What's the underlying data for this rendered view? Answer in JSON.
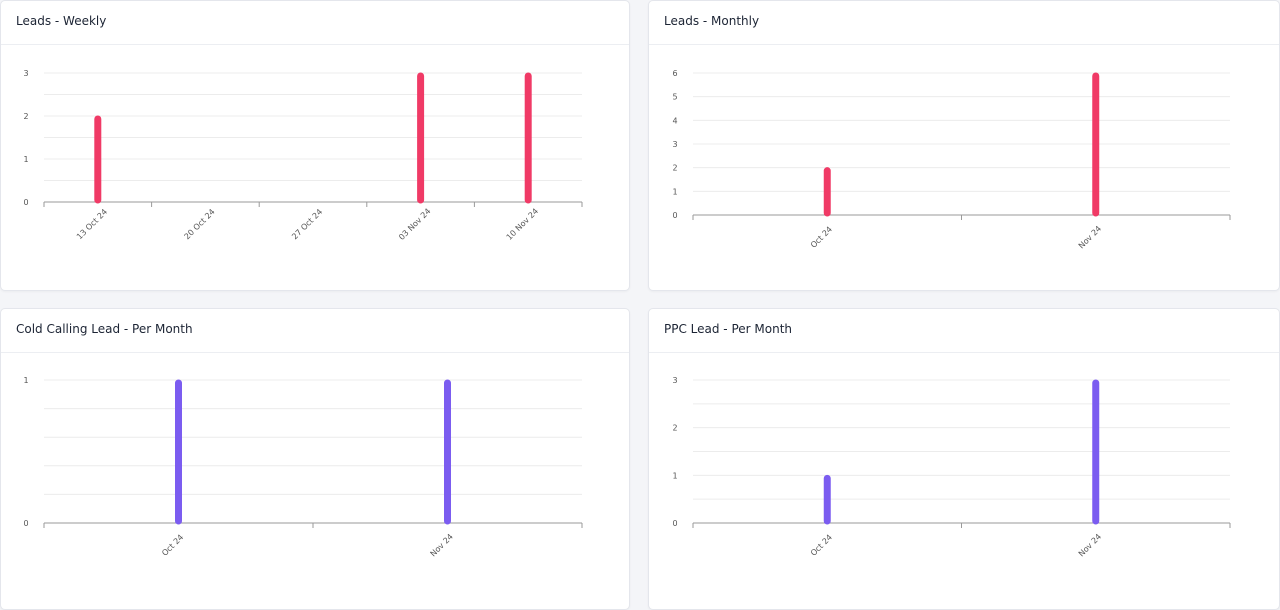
{
  "colors": {
    "primary_bar": "#f03a66",
    "secondary_bar": "#7b5cf0",
    "grid": "#ececec",
    "axis": "#9a9a9a",
    "tick_text": "#555555"
  },
  "cards": [
    {
      "title": "Leads - Weekly"
    },
    {
      "title": "Leads - Monthly"
    },
    {
      "title": "Cold Calling Lead - Per Month"
    },
    {
      "title": "PPC Lead - Per Month"
    }
  ],
  "chart_data": [
    {
      "type": "bar",
      "title": "Leads - Weekly",
      "categories": [
        "13 Oct 24",
        "20 Oct 24",
        "27 Oct 24",
        "03 Nov 24",
        "10 Nov 24"
      ],
      "series": [
        {
          "values": [
            2,
            0,
            0,
            3,
            3
          ]
        }
      ],
      "ylim": [
        0,
        3
      ],
      "yticks": [
        "0",
        "1",
        "2",
        "3"
      ],
      "color": "#f03a66",
      "grid": true
    },
    {
      "type": "bar",
      "title": "Leads - Monthly",
      "categories": [
        "Oct 24",
        "Nov 24"
      ],
      "series": [
        {
          "values": [
            2,
            6
          ]
        }
      ],
      "ylim": [
        0,
        6
      ],
      "yticks": [
        "0",
        "1",
        "2",
        "3",
        "4",
        "5",
        "6"
      ],
      "color": "#f03a66",
      "grid": true
    },
    {
      "type": "bar",
      "title": "Cold Calling Lead - Per Month",
      "categories": [
        "Oct 24",
        "Nov 24"
      ],
      "series": [
        {
          "values": [
            1,
            1
          ]
        }
      ],
      "ylim": [
        0,
        1
      ],
      "yticks": [
        "0",
        "1"
      ],
      "color": "#7b5cf0",
      "grid": true
    },
    {
      "type": "bar",
      "title": "PPC Lead - Per Month",
      "categories": [
        "Oct 24",
        "Nov 24"
      ],
      "series": [
        {
          "values": [
            1,
            3
          ]
        }
      ],
      "ylim": [
        0,
        3
      ],
      "yticks": [
        "0",
        "1",
        "2",
        "3"
      ],
      "color": "#7b5cf0",
      "grid": true
    }
  ]
}
